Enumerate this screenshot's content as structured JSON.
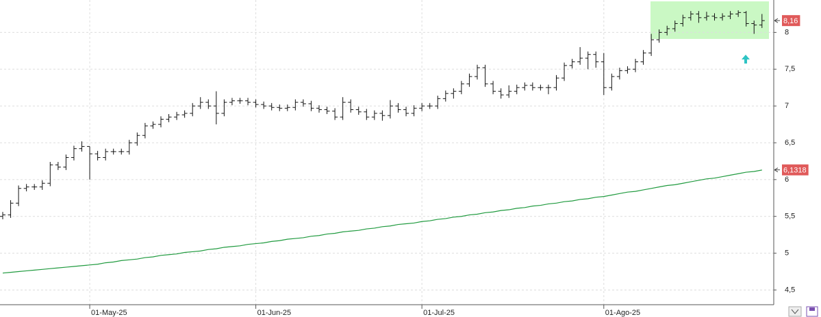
{
  "chart_data": {
    "type": "ohlc",
    "categories": [
      null,
      null,
      null,
      null,
      null,
      null,
      null,
      null,
      null,
      null,
      null,
      "01-May-25",
      null,
      null,
      null,
      null,
      null,
      null,
      null,
      null,
      null,
      null,
      null,
      null,
      null,
      null,
      null,
      null,
      null,
      null,
      null,
      null,
      "01-Jun-25",
      null,
      null,
      null,
      null,
      null,
      null,
      null,
      null,
      null,
      null,
      null,
      null,
      null,
      null,
      null,
      null,
      null,
      null,
      null,
      null,
      "01-Jul-25",
      null,
      null,
      null,
      null,
      null,
      null,
      null,
      null,
      null,
      null,
      null,
      null,
      null,
      null,
      null,
      null,
      null,
      null,
      null,
      null,
      null,
      null,
      "01-Ago-25",
      null,
      null,
      null,
      null,
      null,
      null,
      null,
      null,
      null,
      null,
      null,
      null,
      null,
      null,
      null,
      null,
      null,
      null,
      null,
      null
    ],
    "open": [
      5.5,
      5.52,
      5.68,
      5.88,
      5.9,
      5.9,
      5.95,
      6.2,
      6.17,
      6.3,
      6.42,
      6.45,
      6.35,
      6.3,
      6.38,
      6.38,
      6.38,
      6.5,
      6.6,
      6.73,
      6.75,
      6.82,
      6.85,
      6.88,
      6.9,
      7.0,
      7.05,
      7.0,
      6.9,
      7.05,
      7.07,
      7.07,
      7.05,
      7.02,
      7.0,
      6.98,
      6.97,
      6.98,
      7.05,
      7.03,
      6.97,
      6.95,
      6.93,
      6.85,
      7.05,
      6.95,
      6.92,
      6.85,
      6.9,
      6.87,
      7.0,
      6.95,
      6.9,
      6.97,
      7.0,
      7.0,
      7.1,
      7.17,
      7.2,
      7.3,
      7.4,
      7.52,
      7.3,
      7.2,
      7.15,
      7.2,
      7.25,
      7.28,
      7.25,
      7.25,
      7.25,
      7.38,
      7.55,
      7.6,
      7.65,
      7.7,
      7.6,
      7.25,
      7.4,
      7.48,
      7.5,
      7.6,
      7.72,
      7.9,
      8.0,
      8.05,
      8.12,
      8.2,
      8.25,
      8.2,
      8.22,
      8.2,
      8.22,
      8.25,
      8.27,
      8.12,
      8.1
    ],
    "high": [
      5.56,
      5.72,
      5.92,
      5.94,
      5.94,
      5.99,
      6.24,
      6.24,
      6.34,
      6.46,
      6.52,
      6.45,
      6.39,
      6.42,
      6.42,
      6.42,
      6.54,
      6.64,
      6.77,
      6.79,
      6.86,
      6.89,
      6.92,
      6.94,
      7.04,
      7.12,
      7.09,
      7.2,
      7.09,
      7.11,
      7.11,
      7.11,
      7.09,
      7.06,
      7.04,
      7.02,
      7.02,
      7.09,
      7.09,
      7.07,
      7.01,
      6.99,
      6.97,
      7.12,
      7.09,
      6.99,
      6.96,
      6.94,
      6.94,
      7.08,
      7.04,
      6.99,
      7.01,
      7.04,
      7.04,
      7.14,
      7.21,
      7.24,
      7.34,
      7.44,
      7.56,
      7.56,
      7.34,
      7.24,
      7.28,
      7.29,
      7.32,
      7.32,
      7.29,
      7.29,
      7.42,
      7.59,
      7.64,
      7.8,
      7.74,
      7.74,
      7.72,
      7.44,
      7.52,
      7.54,
      7.64,
      7.76,
      7.98,
      8.04,
      8.09,
      8.16,
      8.24,
      8.29,
      8.29,
      8.28,
      8.26,
      8.26,
      8.29,
      8.3,
      8.29,
      8.16,
      8.25
    ],
    "low": [
      5.46,
      5.48,
      5.64,
      5.84,
      5.86,
      5.86,
      5.91,
      6.13,
      6.13,
      6.26,
      6.38,
      6.0,
      6.26,
      6.26,
      6.34,
      6.34,
      6.34,
      6.46,
      6.56,
      6.69,
      6.71,
      6.78,
      6.81,
      6.84,
      6.86,
      6.96,
      6.96,
      6.75,
      6.86,
      7.01,
      7.03,
      7.01,
      6.98,
      6.96,
      6.94,
      6.93,
      6.93,
      6.94,
      6.99,
      6.93,
      6.91,
      6.89,
      6.81,
      6.81,
      6.91,
      6.88,
      6.81,
      6.81,
      6.8,
      6.83,
      6.91,
      6.86,
      6.86,
      6.93,
      6.96,
      6.96,
      7.06,
      7.1,
      7.16,
      7.26,
      7.36,
      7.26,
      7.16,
      7.1,
      7.11,
      7.16,
      7.21,
      7.21,
      7.21,
      7.16,
      7.21,
      7.34,
      7.51,
      7.56,
      7.5,
      7.52,
      7.15,
      7.21,
      7.36,
      7.44,
      7.46,
      7.56,
      7.68,
      7.86,
      7.96,
      8.01,
      8.08,
      8.16,
      8.13,
      8.16,
      8.16,
      8.16,
      8.18,
      8.21,
      8.08,
      7.98,
      8.06
    ],
    "close": [
      5.52,
      5.68,
      5.88,
      5.9,
      5.9,
      5.95,
      6.2,
      6.17,
      6.3,
      6.42,
      6.45,
      6.35,
      6.3,
      6.38,
      6.38,
      6.38,
      6.5,
      6.6,
      6.73,
      6.75,
      6.82,
      6.85,
      6.88,
      6.9,
      7.0,
      7.05,
      7.0,
      6.9,
      7.05,
      7.07,
      7.07,
      7.05,
      7.02,
      7.0,
      6.98,
      6.97,
      6.98,
      7.05,
      7.03,
      6.97,
      6.95,
      6.93,
      6.85,
      7.05,
      6.95,
      6.92,
      6.85,
      6.9,
      6.87,
      7.0,
      6.95,
      6.9,
      6.97,
      7.0,
      7.0,
      7.1,
      7.17,
      7.2,
      7.3,
      7.4,
      7.52,
      7.3,
      7.2,
      7.15,
      7.2,
      7.25,
      7.28,
      7.25,
      7.25,
      7.25,
      7.38,
      7.55,
      7.6,
      7.65,
      7.7,
      7.6,
      7.25,
      7.4,
      7.48,
      7.5,
      7.6,
      7.72,
      7.9,
      8.0,
      8.05,
      8.12,
      8.2,
      8.25,
      8.2,
      8.22,
      8.2,
      8.22,
      8.25,
      8.27,
      8.12,
      8.1,
      8.16
    ],
    "bar_color": "#111111",
    "average": {
      "color": "#1f9a3e",
      "values": [
        4.73,
        4.74,
        4.75,
        4.76,
        4.77,
        4.78,
        4.79,
        4.8,
        4.81,
        4.82,
        4.83,
        4.84,
        4.85,
        4.87,
        4.88,
        4.9,
        4.91,
        4.92,
        4.94,
        4.95,
        4.97,
        4.98,
        4.99,
        5.01,
        5.02,
        5.03,
        5.05,
        5.06,
        5.08,
        5.09,
        5.1,
        5.12,
        5.13,
        5.14,
        5.16,
        5.17,
        5.19,
        5.2,
        5.21,
        5.23,
        5.24,
        5.26,
        5.27,
        5.29,
        5.3,
        5.31,
        5.33,
        5.34,
        5.36,
        5.37,
        5.39,
        5.4,
        5.41,
        5.43,
        5.44,
        5.46,
        5.47,
        5.49,
        5.5,
        5.52,
        5.53,
        5.55,
        5.56,
        5.58,
        5.59,
        5.61,
        5.62,
        5.64,
        5.65,
        5.67,
        5.68,
        5.7,
        5.71,
        5.73,
        5.74,
        5.76,
        5.77,
        5.79,
        5.81,
        5.83,
        5.84,
        5.86,
        5.88,
        5.9,
        5.92,
        5.93,
        5.95,
        5.97,
        5.99,
        6.01,
        6.02,
        6.04,
        6.06,
        6.08,
        6.1,
        6.11,
        6.13
      ]
    },
    "price_markers": [
      {
        "value": 8.16,
        "label": "8,16"
      },
      {
        "value": 6.1318,
        "label": "6,1318"
      }
    ],
    "marker_color": "#e05a5a",
    "ylim": [
      4.3,
      8.44
    ],
    "yticks": [
      {
        "value": 4.5,
        "label": "4,5"
      },
      5,
      {
        "value": 5.5,
        "label": "5,5"
      },
      6,
      {
        "value": 6.5,
        "label": "6,5"
      },
      7,
      {
        "value": 7.5,
        "label": "7,5"
      },
      8
    ],
    "grid": true
  }
}
